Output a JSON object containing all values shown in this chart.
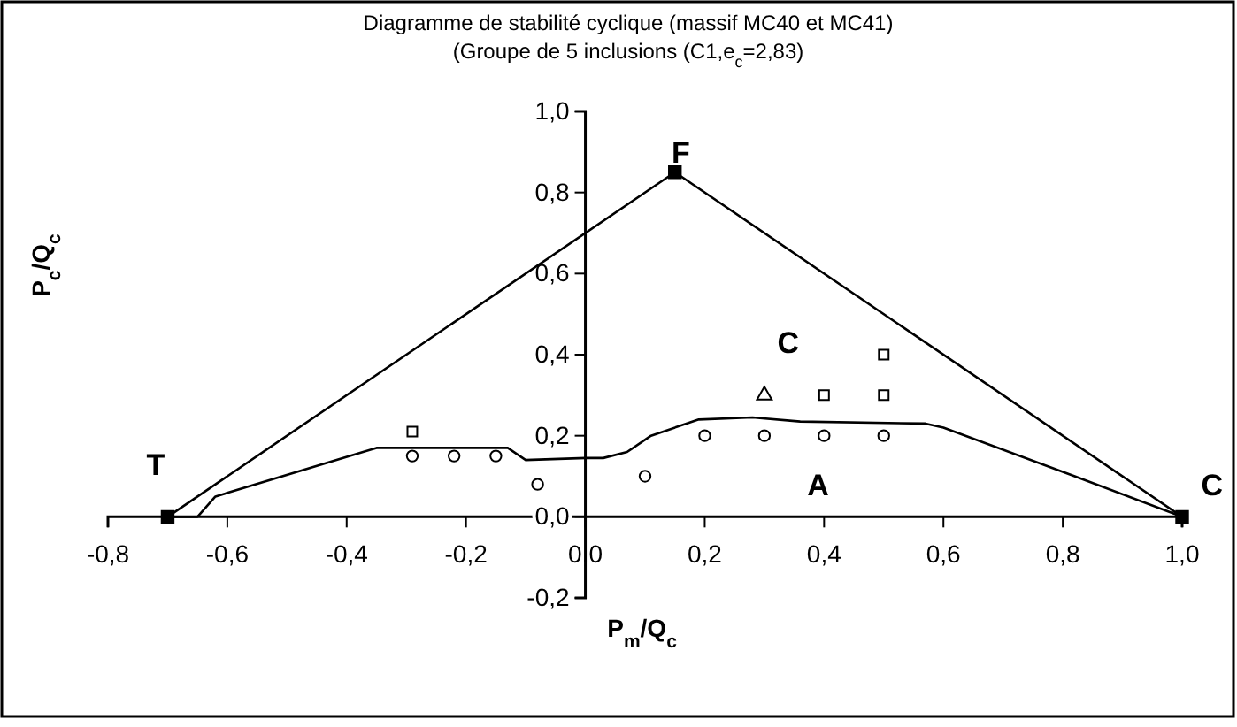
{
  "chart_data": {
    "type": "line",
    "title": "Diagramme de stabilité cyclique (massif MC40 et MC41)",
    "subtitle": "(Groupe de 5 inclusions (C1,e$_{c}$=2,83)",
    "xlabel": "P$_{m}$/Q$_{c}$",
    "ylabel": "P$_{c}$/Q$_{c}$",
    "xlim": [
      -0.8,
      1.0
    ],
    "ylim": [
      -0.2,
      1.0
    ],
    "xticks": [
      {
        "value": -0.8,
        "label": "-0,8"
      },
      {
        "value": -0.6,
        "label": "-0,6"
      },
      {
        "value": -0.4,
        "label": "-0,4"
      },
      {
        "value": -0.2,
        "label": "-0,2"
      },
      {
        "value": 0,
        "label": "0,0"
      },
      {
        "value": 0.2,
        "label": "0,2"
      },
      {
        "value": 0.4,
        "label": "0,4"
      },
      {
        "value": 0.6,
        "label": "0,6"
      },
      {
        "value": 0.8,
        "label": "0,8"
      },
      {
        "value": 1.0,
        "label": "1,0"
      }
    ],
    "yticks": [
      {
        "value": -0.2,
        "label": "-0,2"
      },
      {
        "value": 0,
        "label": "0,0"
      },
      {
        "value": 0.2,
        "label": "0,2"
      },
      {
        "value": 0.4,
        "label": "0,4"
      },
      {
        "value": 0.6,
        "label": "0,6"
      },
      {
        "value": 0.8,
        "label": "0,8"
      },
      {
        "value": 1.0,
        "label": "1,0"
      }
    ],
    "grid": false,
    "series": [
      {
        "color": "#000000",
        "marker": "square",
        "x": [
          -0.7,
          0.15,
          1.0
        ],
        "values": [
          0,
          0.85,
          0
        ]
      },
      {
        "color": "#000000",
        "marker": "none",
        "x": [
          -0.7,
          -0.65,
          -0.62,
          -0.35,
          -0.25,
          -0.13,
          -0.1,
          0,
          0.03,
          0.07,
          0.11,
          0.19,
          0.28,
          0.36,
          0.57,
          0.6,
          0.82,
          1.0
        ],
        "values": [
          0,
          0,
          0.05,
          0.17,
          0.17,
          0.17,
          0.14,
          0.145,
          0.145,
          0.16,
          0.2,
          0.24,
          0.245,
          0.235,
          0.23,
          0.22,
          0.1,
          0
        ]
      },
      {
        "type": "scatter",
        "color": "#000000",
        "marker": "circle",
        "x": [
          -0.29,
          -0.22,
          -0.15,
          -0.08,
          0.1,
          0.2,
          0.3,
          0.4,
          0.5
        ],
        "values": [
          0.15,
          0.15,
          0.15,
          0.08,
          0.1,
          0.2,
          0.2,
          0.2,
          0.2
        ]
      },
      {
        "type": "scatter",
        "color": "#000000",
        "marker": "square",
        "x": [
          -0.29,
          0.4,
          0.5,
          0.5
        ],
        "values": [
          0.21,
          0.3,
          0.3,
          0.4
        ]
      },
      {
        "type": "scatter",
        "color": "#000000",
        "marker": "triangle",
        "x": [
          0.3
        ],
        "values": [
          0.3
        ]
      }
    ],
    "annotations": [
      "T",
      "F",
      "C",
      "C",
      "A"
    ]
  }
}
